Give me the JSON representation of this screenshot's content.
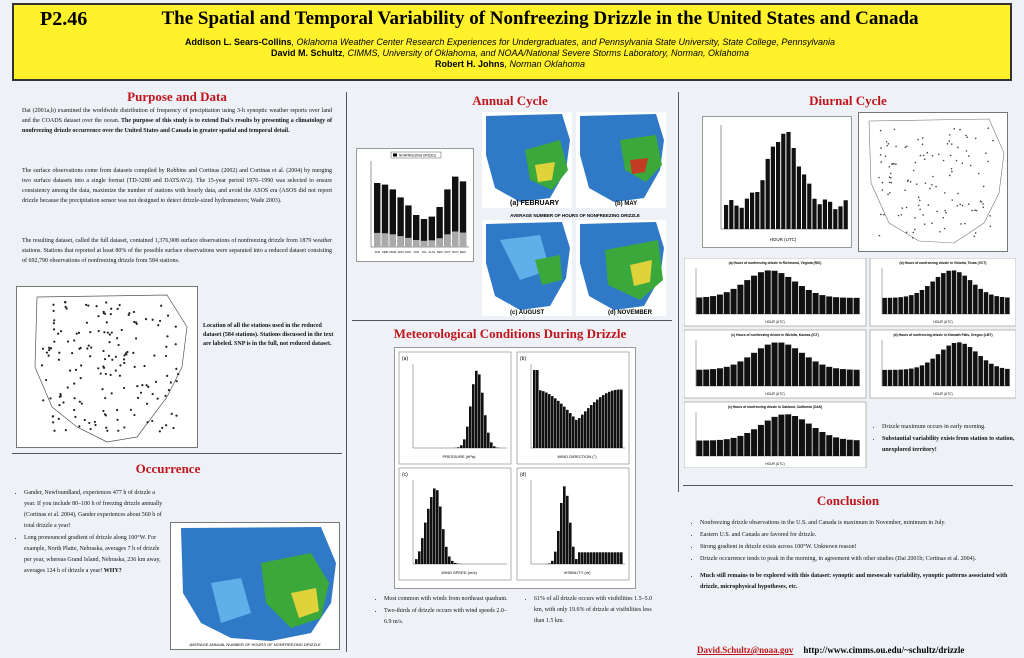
{
  "header": {
    "code": "P2.46",
    "title": "The Spatial and Temporal Variability of Nonfreezing Drizzle in the United States and Canada",
    "author1_name": "Addison L. Sears-Collins",
    "author1_aff": ", Oklahoma Weather Center Research Experiences for Undergraduates, and Pennsylvania State University, State College, Pennsylvania",
    "author2_name": "David M. Schultz",
    "author2_aff": ", CIMMS, University of Oklahoma, and NOAA/National Severe Storms Laboratory, Norman, Oklahoma",
    "author3_name": "Robert H. Johns",
    "author3_aff": ", Norman Oklahoma"
  },
  "purpose": {
    "heading": "Purpose and Data",
    "p1_plain": "Dai (2001a,b) examined the worldwide distribution of frequency of precipitation using 3-h synoptic weather reports over land and the COADS dataset over the ocean.",
    "p1_bold": "The purpose of this study is to extend Dai's results by presenting a climatology of nonfreezing drizzle occurrence over the United States and Canada in greater spatial and temporal detail.",
    "p2": "The surface observations come from datasets compiled by Robbins and Cortinas (2002) and Cortinas et al. (2004) by merging two surface datasets into a single format (TD-3280 and DATSAV2). The 15-year period 1976–1990 was selected to ensure consistency among the data, maximize the number of stations with hourly data, and avoid the ASOS era (ASOS did not report drizzle because the precipitation sensor was not designed to detect drizzle-sized hydrometeors; Wade 2003).",
    "p3": "The resulting dataset, called the full dataset, contained 1,376,908 surface observations of nonfreezing drizzle from 1879 weather stations. Stations that reported at least 80% of the possible surface observations were separated into a reduced dataset consisting of 692,790 observations of nonfreezing drizzle from 584 stations.",
    "map_caption": "Location of all the stations used in the reduced dataset (584 stations). Stations discussed in the text are labeled. SNP is in the full, not reduced dataset."
  },
  "occurrence": {
    "heading": "Occurrence",
    "bullets": [
      "Gander, Newfoundland, experiences 477 h of drizzle a year. If you include 80–100 h of freezing drizzle annually (Cortinas et al. 2004), Gander experiences about 560 h of total drizzle a year!",
      "Long pronounced gradient of drizzle along 100°W. For example, North Platte, Nebraska, averages 7 h of drizzle per year, whereas Grand Island, Nebraska, 236 km away, averages 124 h of drizzle a year!"
    ],
    "why": "WHY?",
    "map_caption": "AVERAGE ANNUAL NUMBER OF HOURS OF NONFREEZING DRIZZLE"
  },
  "annual": {
    "heading": "Annual Cycle",
    "chart_caption": "NONFREEZING DRIZZLE",
    "months": [
      "JAN",
      "FEB",
      "MAR",
      "APR",
      "MAY",
      "JUN",
      "JUL",
      "AUG",
      "SEP",
      "OCT",
      "NOV",
      "DEC"
    ],
    "map_labels": [
      "(a) FEBRUARY",
      "(b) MAY",
      "(c) AUGUST",
      "(d) NOVEMBER"
    ],
    "maps_caption": "AVERAGE NUMBER OF HOURS OF NONFREEZING DRIZZLE"
  },
  "meteo": {
    "heading": "Meteorological Conditions During Drizzle",
    "panel_labels": [
      "(a)",
      "(b)",
      "(c)",
      "(d)"
    ],
    "xlabels": [
      "PRESSURE (hPa)",
      "WIND DIRECTION (°)",
      "WIND SPEED (m/s)",
      "VISIBILITY (m)"
    ],
    "bullets_left": [
      "Most common with winds from northeast quadrant.",
      "Two-thirds of drizzle occurs with wind speeds 2.0–6.9 m/s."
    ],
    "bullets_right": [
      "61% of all drizzle occurs with visibilities 1.5–5.0 km, with only 19.6% of drizzle at visibilities less than 1.5 km."
    ]
  },
  "diurnal": {
    "heading": "Diurnal Cycle",
    "chart_titles": [
      "(a) Hours of nonfreezing drizzle in Richmond, Virginia (RIC)",
      "(b) Hours of nonfreezing drizzle in Victoria, Texas (VCT)",
      "(c) Hours of nonfreezing drizzle in Wichita, Kansas (ICT)",
      "(d) Hours of nonfreezing drizzle in Klamath Falls, Oregon (LMT)",
      "(c) Hours of nonfreezing drizzle in Oakland, California (OAK)"
    ],
    "xlabel": "HOUR (UTC)",
    "bullets": [
      "Drizzle maximum occurs in early morning.",
      "Substantial variability exists from station to station, unexplored territory!"
    ]
  },
  "conclusion": {
    "heading": "Conclusion",
    "bullets": [
      "Nonfreezing drizzle observations in the U.S. and Canada is maximum in November, minimum in July.",
      "Eastern U.S. and Canada are favored for drizzle.",
      "Strong gradient in drizzle exists across 100°W. Unknown reason!",
      "Drizzle occurrence tends to peak in the morning, in agreement with other studies (Dai 2001b; Cortinas et al. 2004)."
    ],
    "bold_bullet": "Much still remains to be explored with this dataset: synoptic and mesoscale variability, synoptic patterns associated with drizzle, microphysical hypotheses, etc.",
    "email": "David.Schultz@noaa.gov",
    "url": "http://www.cimms.ou.edu/~schultz/drizzle"
  },
  "colors": {
    "header_bg": "#fff12a",
    "heading": "#c0141c",
    "map_blue": "#2f79c7",
    "map_green": "#3aa83a"
  }
}
